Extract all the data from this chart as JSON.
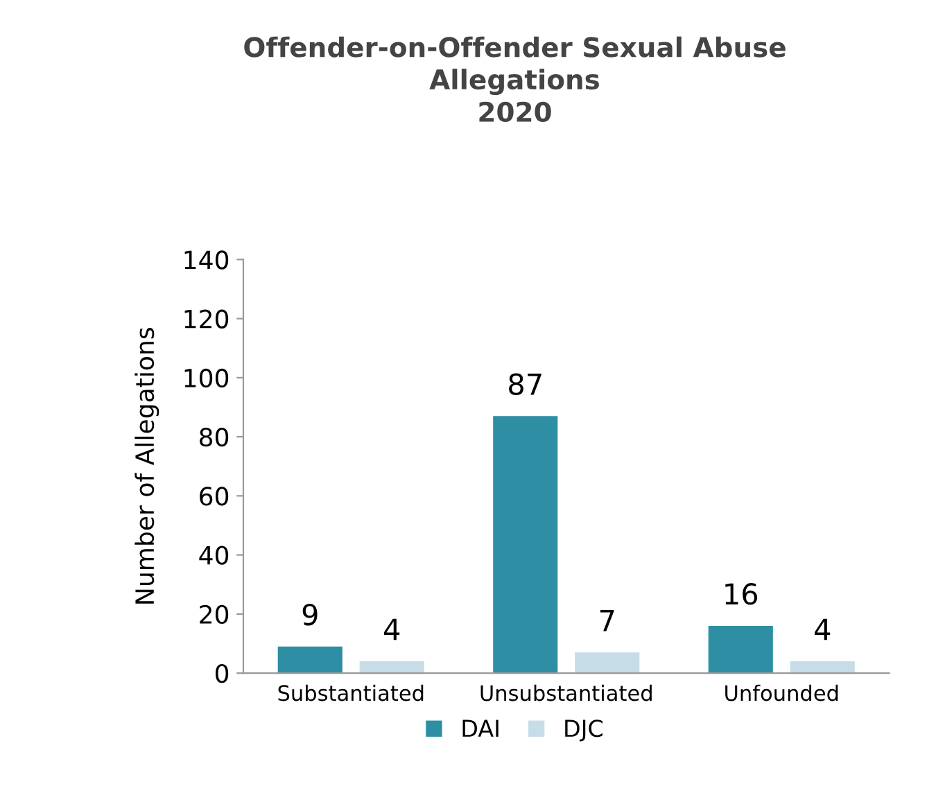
{
  "chart_data": {
    "type": "bar",
    "title": "Offender-on-Offender Sexual Abuse\nAllegations\n2020",
    "ylabel": "Number of Allegations",
    "categories": [
      "Substantiated",
      "Unsubstantiated",
      "Unfounded"
    ],
    "series": [
      {
        "name": "DAI",
        "color": "#2e8ea4",
        "values": [
          9,
          87,
          16
        ]
      },
      {
        "name": "DJC",
        "color": "#c6dde8",
        "values": [
          4,
          7,
          4
        ]
      }
    ],
    "ylim": [
      0,
      140
    ],
    "yticks": [
      0,
      20,
      40,
      60,
      80,
      100,
      120,
      140
    ],
    "data_labels": true,
    "grid": false,
    "legend": "bottom"
  }
}
